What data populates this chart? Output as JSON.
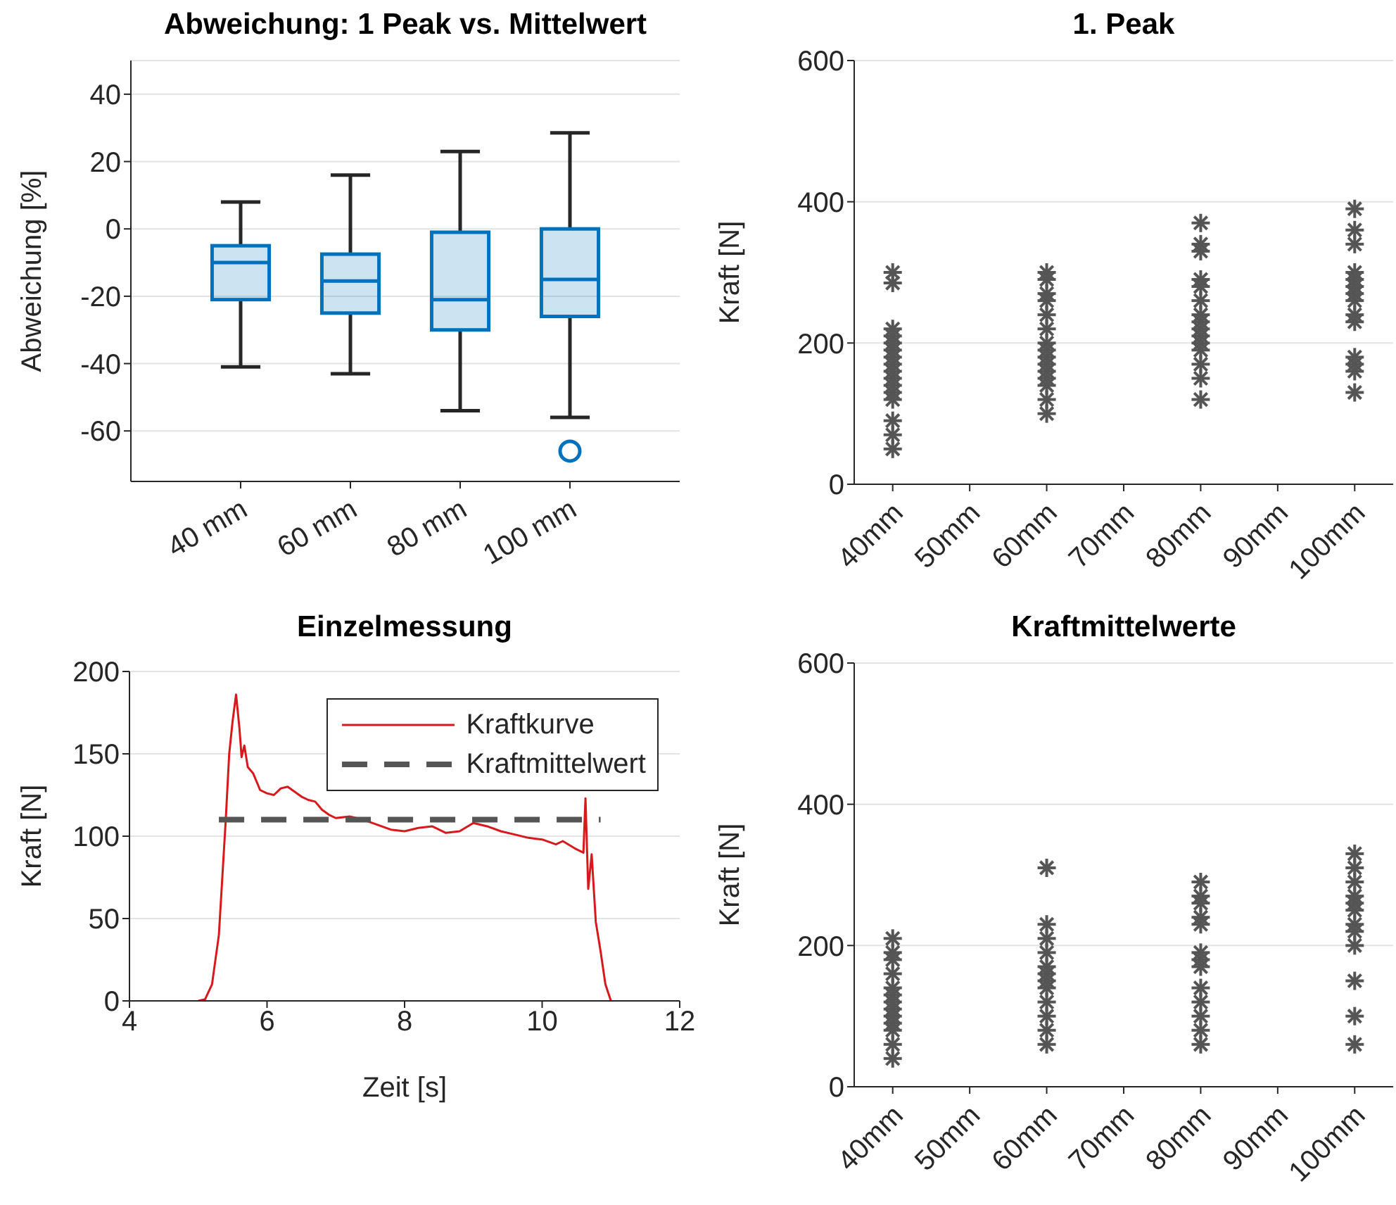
{
  "chart_data": [
    {
      "type": "box",
      "title": "Abweichung: 1 Peak vs. Mittelwert",
      "ylabel": "Abweichung [%]",
      "categories": [
        "40 mm",
        "60 mm",
        "80 mm",
        "100 mm"
      ],
      "color": "#0072bd",
      "ylim": [
        -75,
        50
      ],
      "yticks": [
        -60,
        -40,
        -20,
        0,
        20,
        40
      ],
      "grid": "y",
      "boxes": [
        {
          "low": -41,
          "q1": -21,
          "median": -10,
          "q3": -5,
          "high": 8
        },
        {
          "low": -43,
          "q1": -25,
          "median": -15.5,
          "q3": -7.5,
          "high": 16
        },
        {
          "low": -54,
          "q1": -30,
          "median": -21,
          "q3": -1,
          "high": 23
        },
        {
          "low": -56,
          "q1": -26,
          "median": -15,
          "q3": 0,
          "high": 28.5,
          "outliers": [
            -66
          ]
        }
      ]
    },
    {
      "type": "scatter",
      "title": "1. Peak",
      "ylabel": "Kraft [N]",
      "xlim": [
        35,
        105
      ],
      "xticks": [
        {
          "value": 40,
          "label": "40mm"
        },
        {
          "value": 50,
          "label": "50mm"
        },
        {
          "value": 60,
          "label": "60mm"
        },
        {
          "value": 70,
          "label": "70mm"
        },
        {
          "value": 80,
          "label": "80mm"
        },
        {
          "value": 90,
          "label": "90mm"
        },
        {
          "value": 100,
          "label": "100mm"
        }
      ],
      "ylim": [
        0,
        600
      ],
      "yticks": [
        0,
        200,
        400,
        600
      ],
      "grid": "y",
      "marker": "cross",
      "series": [
        {
          "color": "#555555",
          "x": [
            40,
            40,
            40,
            40,
            40,
            40,
            40,
            40,
            40,
            40,
            40,
            40,
            40,
            40,
            40,
            40,
            60,
            60,
            60,
            60,
            60,
            60,
            60,
            60,
            60,
            60,
            60,
            60,
            60,
            60,
            60,
            80,
            80,
            80,
            80,
            80,
            80,
            80,
            80,
            80,
            80,
            80,
            80,
            80,
            80,
            80,
            100,
            100,
            100,
            100,
            100,
            100,
            100,
            100,
            100,
            100,
            100,
            100,
            100,
            100
          ],
          "values": [
            300,
            285,
            220,
            210,
            200,
            190,
            180,
            170,
            160,
            150,
            140,
            130,
            120,
            90,
            70,
            50,
            300,
            290,
            270,
            260,
            240,
            220,
            200,
            190,
            180,
            170,
            160,
            150,
            140,
            120,
            100,
            370,
            340,
            330,
            290,
            280,
            260,
            240,
            230,
            220,
            210,
            200,
            190,
            170,
            150,
            120,
            390,
            360,
            340,
            300,
            290,
            280,
            270,
            260,
            240,
            230,
            180,
            170,
            160,
            130
          ]
        }
      ]
    },
    {
      "type": "line",
      "title": "Einzelmessung",
      "xlabel": "Zeit [s]",
      "ylabel": "Kraft [N]",
      "xlim": [
        4,
        12
      ],
      "xticks": [
        4,
        6,
        8,
        10,
        12
      ],
      "ylim": [
        0,
        200
      ],
      "yticks": [
        0,
        50,
        100,
        150,
        200
      ],
      "grid": "y",
      "legend": "top right",
      "series": [
        {
          "name": "Kraftkurve",
          "color": "#d7191c",
          "line_style": "solid",
          "x": [
            5.0,
            5.1,
            5.2,
            5.3,
            5.35,
            5.4,
            5.45,
            5.5,
            5.55,
            5.6,
            5.63,
            5.67,
            5.72,
            5.8,
            5.9,
            6.0,
            6.1,
            6.2,
            6.3,
            6.4,
            6.5,
            6.6,
            6.7,
            6.8,
            6.9,
            7.0,
            7.2,
            7.4,
            7.6,
            7.8,
            8.0,
            8.2,
            8.4,
            8.6,
            8.8,
            9.0,
            9.2,
            9.4,
            9.6,
            9.8,
            10.0,
            10.2,
            10.3,
            10.5,
            10.6,
            10.63,
            10.67,
            10.72,
            10.78,
            10.85,
            10.92,
            11.0
          ],
          "values": [
            0,
            1,
            10,
            40,
            75,
            110,
            150,
            170,
            186,
            165,
            148,
            155,
            142,
            138,
            128,
            126,
            125,
            129,
            130,
            127,
            124,
            122,
            121,
            116,
            113,
            111,
            112,
            110,
            107,
            104,
            103,
            105,
            106,
            102,
            103,
            108,
            106,
            103,
            101,
            99,
            98,
            95,
            97,
            92,
            90,
            123,
            68,
            89,
            48,
            30,
            10,
            0
          ]
        },
        {
          "name": "Kraftmittelwert",
          "color": "#555555",
          "line_style": "dashed",
          "x": [
            5.3,
            10.85
          ],
          "values": [
            110,
            110
          ]
        }
      ]
    },
    {
      "type": "scatter",
      "title": "Kraftmittelwerte",
      "ylabel": "Kraft [N]",
      "xlim": [
        35,
        105
      ],
      "xticks": [
        {
          "value": 40,
          "label": "40mm"
        },
        {
          "value": 50,
          "label": "50mm"
        },
        {
          "value": 60,
          "label": "60mm"
        },
        {
          "value": 70,
          "label": "70mm"
        },
        {
          "value": 80,
          "label": "80mm"
        },
        {
          "value": 90,
          "label": "90mm"
        },
        {
          "value": 100,
          "label": "100mm"
        }
      ],
      "ylim": [
        0,
        600
      ],
      "yticks": [
        0,
        200,
        400,
        600
      ],
      "grid": "y",
      "marker": "cross",
      "series": [
        {
          "color": "#555555",
          "x": [
            40,
            40,
            40,
            40,
            40,
            40,
            40,
            40,
            40,
            40,
            40,
            40,
            40,
            60,
            60,
            60,
            60,
            60,
            60,
            60,
            60,
            60,
            60,
            60,
            60,
            80,
            80,
            80,
            80,
            80,
            80,
            80,
            80,
            80,
            80,
            80,
            80,
            80,
            100,
            100,
            100,
            100,
            100,
            100,
            100,
            100,
            100,
            100,
            100,
            100
          ],
          "values": [
            210,
            190,
            180,
            160,
            140,
            130,
            120,
            110,
            100,
            90,
            80,
            60,
            40,
            310,
            230,
            210,
            190,
            170,
            160,
            150,
            140,
            120,
            100,
            80,
            60,
            290,
            270,
            260,
            240,
            230,
            190,
            180,
            170,
            140,
            120,
            100,
            80,
            60,
            330,
            310,
            290,
            270,
            260,
            250,
            230,
            220,
            200,
            150,
            100,
            60
          ]
        }
      ]
    }
  ]
}
